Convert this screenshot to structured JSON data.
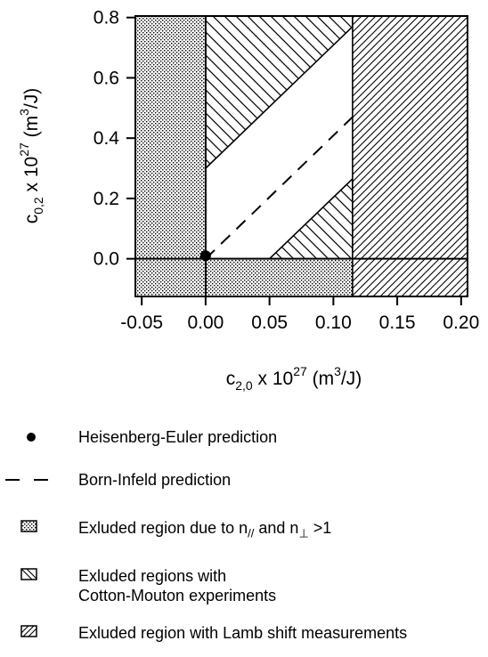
{
  "chart_data": {
    "type": "area",
    "xlabel": {
      "base": "c",
      "sub": "2,0",
      "mid": " x 10",
      "exp": "27",
      "unit_pre": " (m",
      "unit_exp": "3",
      "unit_post": "/J)"
    },
    "ylabel": {
      "base": "c",
      "sub": "0,2",
      "mid": " x 10",
      "exp": "27",
      "unit_pre": " (m",
      "unit_exp": "3",
      "unit_post": "/J)"
    },
    "xlim": [
      -0.055,
      0.205
    ],
    "ylim": [
      -0.125,
      0.805
    ],
    "x_ticks": [
      -0.05,
      0.0,
      0.05,
      0.1,
      0.15,
      0.2
    ],
    "x_tick_labels": [
      "-0.05",
      "0.00",
      "0.05",
      "0.10",
      "0.15",
      "0.20"
    ],
    "y_ticks": [
      0.0,
      0.2,
      0.4,
      0.6,
      0.8
    ],
    "y_tick_labels": [
      "0.0",
      "0.2",
      "0.4",
      "0.6",
      "0.8"
    ],
    "zero_lines": true,
    "regions": {
      "excluded_refractive_index": {
        "pattern": "dots",
        "areas": [
          [
            [
              -0.055,
              -0.125
            ],
            [
              0.0,
              -0.125
            ],
            [
              0.0,
              0.805
            ],
            [
              -0.055,
              0.805
            ]
          ],
          [
            [
              0.0,
              -0.125
            ],
            [
              0.205,
              -0.125
            ],
            [
              0.205,
              0.0
            ],
            [
              0.0,
              0.0
            ]
          ]
        ]
      },
      "excluded_cotton_mouton": {
        "pattern": "diagonal-backslash",
        "areas": [
          [
            [
              0.0,
              0.3
            ],
            [
              0.115,
              0.77
            ],
            [
              0.115,
              0.805
            ],
            [
              0.0,
              0.805
            ]
          ],
          [
            [
              0.05,
              0.0
            ],
            [
              0.115,
              0.265
            ],
            [
              0.115,
              0.0
            ]
          ]
        ]
      },
      "excluded_lamb_shift": {
        "pattern": "diagonal-slash",
        "areas": [
          [
            [
              0.115,
              -0.125
            ],
            [
              0.205,
              -0.125
            ],
            [
              0.205,
              0.805
            ],
            [
              0.115,
              0.805
            ]
          ]
        ]
      }
    },
    "series": [
      {
        "kind": "point",
        "x": 0.0,
        "y": 0.01
      },
      {
        "kind": "dashed-line",
        "x": [
          0.0,
          0.115
        ],
        "y": [
          0.0,
          0.47
        ]
      }
    ]
  },
  "legend": [
    {
      "symbol": "filled-dot",
      "text": "Heisenberg-Euler prediction"
    },
    {
      "symbol": "dashed-line",
      "text": "Born-Infeld prediction"
    },
    {
      "symbol": "dots-box",
      "text_pre": "Exluded region due to n",
      "sub1": "//",
      "text_mid": " and n",
      "sub2": "⊥",
      "text_post": " >1"
    },
    {
      "symbol": "backslash-box",
      "text_line1": "Exluded regions with",
      "text_line2": "Cotton-Mouton experiments"
    },
    {
      "symbol": "slash-box",
      "text": "Exluded region with Lamb shift measurements"
    }
  ]
}
